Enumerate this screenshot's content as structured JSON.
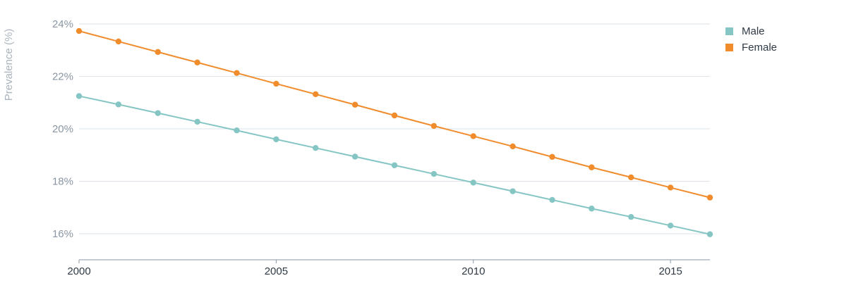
{
  "chart_data": {
    "type": "line",
    "title": "",
    "xlabel": "",
    "ylabel": "Prevalence (%)",
    "x": [
      2000,
      2001,
      2002,
      2003,
      2004,
      2005,
      2006,
      2007,
      2008,
      2009,
      2010,
      2011,
      2012,
      2013,
      2014,
      2015,
      2016
    ],
    "xlim": [
      2000,
      2016
    ],
    "ylim": [
      15,
      24
    ],
    "x_ticks": [
      2000,
      2005,
      2010,
      2015
    ],
    "x_tick_labels": [
      "2000",
      "2005",
      "2010",
      "2015"
    ],
    "y_ticks": [
      16,
      18,
      20,
      22,
      24
    ],
    "y_tick_labels": [
      "16%",
      "18%",
      "20%",
      "22%",
      "24%"
    ],
    "grid": true,
    "legend_position": "top-right",
    "series": [
      {
        "name": "Male",
        "color": "#85c6c4",
        "values": [
          21.25,
          20.93,
          20.6,
          20.27,
          19.94,
          19.6,
          19.27,
          18.94,
          18.61,
          18.28,
          17.95,
          17.62,
          17.29,
          16.96,
          16.64,
          16.31,
          15.98
        ]
      },
      {
        "name": "Female",
        "color": "#f08c2c",
        "values": [
          23.73,
          23.33,
          22.93,
          22.53,
          22.13,
          21.72,
          21.32,
          20.92,
          20.51,
          20.11,
          19.72,
          19.33,
          18.93,
          18.53,
          18.15,
          17.76,
          17.38
        ]
      }
    ]
  }
}
